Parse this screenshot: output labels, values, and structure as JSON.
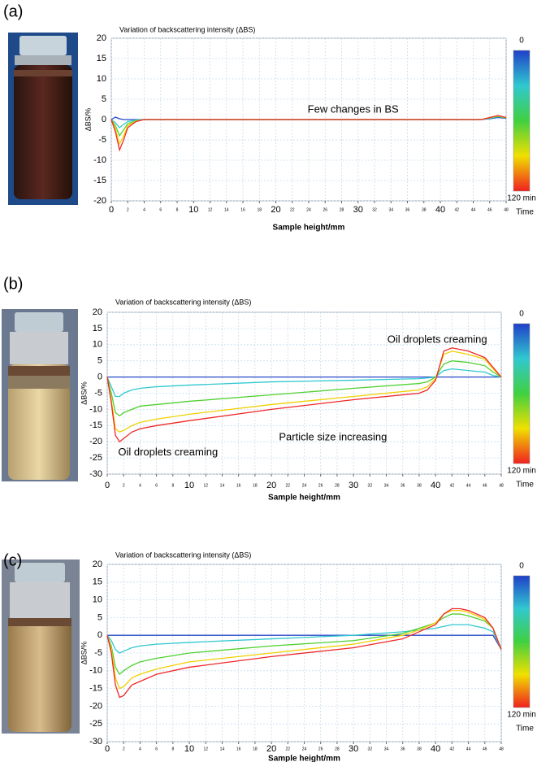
{
  "chart_data": [
    {
      "type": "line",
      "label": "(a)",
      "title": "Variation of backscattering intensity (ΔBS)",
      "x_label": "Sample height/mm",
      "y_label": "ΔBS/%",
      "annotations": [
        "Few changes in BS"
      ],
      "x": [
        0,
        0.5,
        1,
        1.5,
        2,
        3,
        4,
        6,
        10,
        20,
        30,
        40,
        45,
        46,
        47,
        48
      ],
      "series": [
        {
          "color": "#2848c8",
          "values": [
            0,
            0.6,
            0.2,
            0,
            0,
            0,
            0,
            0,
            0,
            0,
            0,
            0,
            0,
            0.2,
            0.5,
            0.3
          ]
        },
        {
          "color": "#30c8d0",
          "values": [
            0,
            -0.8,
            -2,
            -1.2,
            -0.5,
            -0.1,
            0,
            0,
            0,
            0,
            0,
            0,
            0,
            0.3,
            0.7,
            0.4
          ]
        },
        {
          "color": "#50d030",
          "values": [
            0,
            -1.5,
            -4,
            -2.5,
            -1,
            -0.3,
            0,
            0,
            0,
            0,
            0,
            0,
            0,
            0.4,
            0.8,
            0.4
          ]
        },
        {
          "color": "#f0d000",
          "values": [
            0,
            -2.3,
            -6,
            -4,
            -1.5,
            -0.4,
            0,
            0,
            0,
            0,
            0,
            0,
            0,
            0.5,
            0.9,
            0.5
          ]
        },
        {
          "color": "#f02828",
          "values": [
            0,
            -3,
            -7.5,
            -5,
            -2,
            -0.5,
            0,
            0,
            0,
            0,
            0,
            0,
            0,
            0.5,
            1,
            0.5
          ]
        }
      ],
      "xlim": [
        0,
        48
      ],
      "xticks": [
        0,
        2,
        4,
        6,
        8,
        10,
        12,
        14,
        16,
        18,
        20,
        22,
        24,
        26,
        28,
        30,
        32,
        34,
        36,
        38,
        40,
        42,
        44,
        46,
        48
      ],
      "ylim": [
        -20,
        20
      ],
      "yticks": [
        -20,
        -15,
        -10,
        -5,
        0,
        5,
        10,
        15,
        20
      ],
      "grid": true,
      "colorbar": {
        "lim": [
          0,
          120
        ],
        "ticks": [
          0,
          {
            "value": 120,
            "label": "120 min"
          }
        ],
        "label": "Time",
        "colors": [
          "#2040c8",
          "#30c8d0",
          "#40d040",
          "#f0e000",
          "#f02020"
        ]
      }
    },
    {
      "type": "line",
      "label": "(b)",
      "title": "Variation of backscattering intensity (ΔBS)",
      "x_label": "Sample  height/mm",
      "y_label": "ΔBS/%",
      "annotations": [
        "Oil droplets creaming",
        "Particle size increasing",
        "Oil droplets creaming"
      ],
      "x": [
        0,
        0.5,
        1,
        1.5,
        2,
        3,
        4,
        6,
        10,
        20,
        30,
        38,
        39,
        40,
        41,
        42,
        44,
        46,
        47,
        48
      ],
      "series": [
        {
          "color": "#2848c8",
          "values": [
            0,
            0,
            0,
            0,
            0,
            0,
            0,
            0,
            0,
            0,
            0,
            0,
            0,
            0,
            0,
            0,
            0,
            0,
            0,
            0
          ]
        },
        {
          "color": "#30c8d0",
          "values": [
            0,
            -3,
            -6,
            -6,
            -5,
            -4,
            -3.5,
            -3,
            -2.5,
            -1.5,
            -1,
            -0.5,
            -0.3,
            0,
            2,
            2.5,
            2,
            1.5,
            0.5,
            0
          ]
        },
        {
          "color": "#50d030",
          "values": [
            0,
            -5,
            -11,
            -12,
            -11,
            -10,
            -9,
            -8.5,
            -7.5,
            -5.5,
            -3.5,
            -2,
            -1.5,
            0,
            4,
            5,
            4.5,
            3.5,
            1.5,
            0
          ]
        },
        {
          "color": "#f0d000",
          "values": [
            0,
            -7,
            -16,
            -17,
            -16.5,
            -15,
            -14,
            -13,
            -11.5,
            -8.5,
            -6,
            -4,
            -3,
            -0.5,
            7,
            8,
            7,
            5.5,
            2.5,
            0
          ]
        },
        {
          "color": "#f02828",
          "values": [
            0,
            -8,
            -18,
            -20,
            -19,
            -17,
            -16,
            -15,
            -13.5,
            -10,
            -7,
            -5,
            -4,
            -1,
            8,
            9,
            8,
            6,
            3,
            0
          ]
        }
      ],
      "xlim": [
        0,
        48
      ],
      "xticks": [
        0,
        2,
        4,
        6,
        8,
        10,
        12,
        14,
        16,
        18,
        20,
        22,
        24,
        26,
        28,
        30,
        32,
        34,
        36,
        38,
        40,
        42,
        44,
        46,
        48
      ],
      "ylim": [
        -30,
        20
      ],
      "yticks": [
        -30,
        -25,
        -20,
        -15,
        -10,
        -5,
        0,
        5,
        10,
        15,
        20
      ],
      "grid": true,
      "colorbar": {
        "lim": [
          0,
          120
        ],
        "ticks": [
          0,
          {
            "value": 120,
            "label": "120 min"
          }
        ],
        "label": "Time",
        "colors": [
          "#2040c8",
          "#30c8d0",
          "#40d040",
          "#f0e000",
          "#f02020"
        ]
      }
    },
    {
      "type": "line",
      "label": "(c)",
      "title": "Variation of backscattering intensity (ΔBS)",
      "x_label": "Sample height/mm",
      "y_label": "ΔBS/%",
      "annotations": [],
      "x": [
        0,
        0.5,
        1,
        1.5,
        2,
        3,
        4,
        6,
        10,
        20,
        30,
        36,
        38,
        40,
        41,
        42,
        43,
        44,
        46,
        47,
        48
      ],
      "series": [
        {
          "color": "#2848c8",
          "values": [
            0,
            0,
            0,
            0,
            0,
            0,
            0,
            0,
            0,
            0,
            0,
            0,
            0,
            0,
            0,
            0,
            0,
            0,
            0,
            0,
            -4
          ]
        },
        {
          "color": "#30c8d0",
          "values": [
            0,
            -1.5,
            -4,
            -5,
            -4.5,
            -3.5,
            -3,
            -2.5,
            -2,
            -1,
            0,
            1,
            1.5,
            2,
            2.5,
            3,
            3,
            3,
            2,
            1,
            -4
          ]
        },
        {
          "color": "#50d030",
          "values": [
            0,
            -3,
            -9,
            -11,
            -10,
            -8.5,
            -7.5,
            -6.5,
            -5,
            -3,
            -1.5,
            0.5,
            2,
            3.5,
            5,
            6,
            6,
            5.5,
            4,
            2,
            -4
          ]
        },
        {
          "color": "#f0d000",
          "values": [
            0,
            -4,
            -12,
            -15,
            -14.5,
            -12,
            -11,
            -9.5,
            -7.5,
            -5,
            -2.5,
            0,
            1.5,
            3.5,
            6,
            7,
            7,
            6.5,
            4.5,
            2,
            -4
          ]
        },
        {
          "color": "#f02828",
          "values": [
            0,
            -5,
            -14,
            -17.5,
            -17,
            -14,
            -13,
            -11,
            -9,
            -6,
            -3.5,
            -1,
            1,
            3,
            6,
            7.5,
            7.5,
            7,
            5,
            2,
            -4
          ]
        }
      ],
      "xlim": [
        0,
        48
      ],
      "xticks": [
        0,
        2,
        4,
        6,
        8,
        10,
        12,
        14,
        16,
        18,
        20,
        22,
        24,
        26,
        28,
        30,
        32,
        34,
        36,
        38,
        40,
        42,
        44,
        46,
        48
      ],
      "ylim": [
        -30,
        20
      ],
      "yticks": [
        -30,
        -25,
        -20,
        -15,
        -10,
        -5,
        0,
        5,
        10,
        15,
        20
      ],
      "grid": true,
      "colorbar": {
        "lim": [
          0,
          120
        ],
        "ticks": [
          0,
          {
            "value": 120,
            "label": "120 min"
          }
        ],
        "label": "Time",
        "colors": [
          "#2040c8",
          "#30c8d0",
          "#40d040",
          "#f0e000",
          "#f02020"
        ]
      }
    }
  ]
}
